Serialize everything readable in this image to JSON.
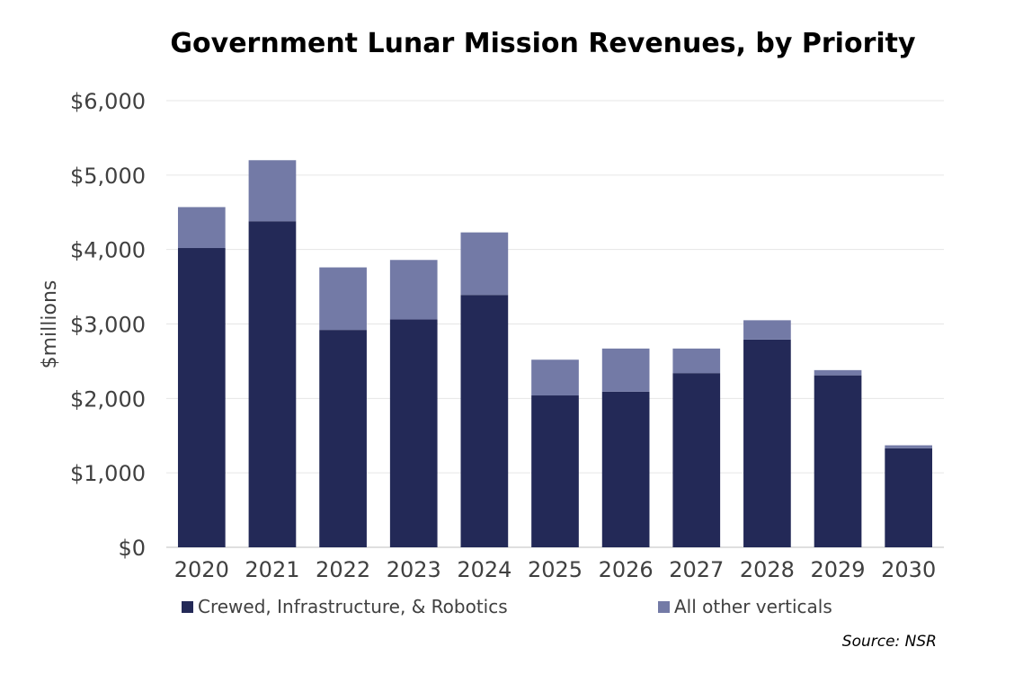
{
  "chart_data": {
    "type": "bar",
    "stacked": true,
    "title": "Government Lunar Mission Revenues, by Priority",
    "xlabel": "",
    "ylabel": "$millions",
    "categories": [
      "2020",
      "2021",
      "2022",
      "2023",
      "2024",
      "2025",
      "2026",
      "2027",
      "2028",
      "2029",
      "2030"
    ],
    "series": [
      {
        "name": "Crewed, Infrastructure, & Robotics",
        "color": "#232957",
        "values": [
          4020,
          4380,
          2920,
          3060,
          3390,
          2040,
          2090,
          2340,
          2790,
          2310,
          1330
        ]
      },
      {
        "name": "All other verticals",
        "color": "#737aa6",
        "values": [
          550,
          820,
          840,
          800,
          840,
          480,
          580,
          330,
          260,
          70,
          40
        ]
      }
    ],
    "ylim": [
      0,
      6000
    ],
    "yticks": [
      0,
      1000,
      2000,
      3000,
      4000,
      5000,
      6000
    ],
    "ytick_labels": [
      "$0",
      "$1,000",
      "$2,000",
      "$3,000",
      "$4,000",
      "$5,000",
      "$6,000"
    ],
    "grid": true,
    "legend_position": "bottom",
    "source": "Source: NSR"
  }
}
